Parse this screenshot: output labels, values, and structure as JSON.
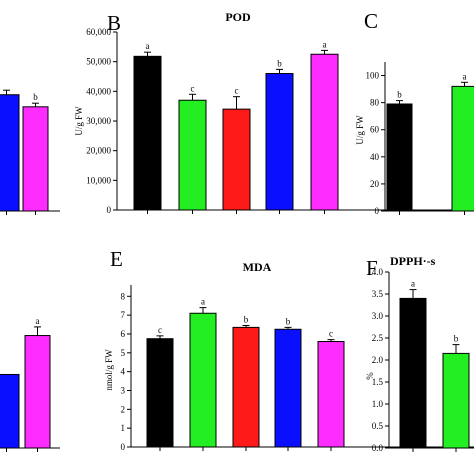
{
  "colors": {
    "black": "#000000",
    "green": "#22ee22",
    "red": "#ff1a1a",
    "blue": "#0a10ff",
    "magenta": "#ff2cff"
  },
  "chart_data": [
    {
      "id": "A-top",
      "type": "bar",
      "panel": "",
      "title": "",
      "ylabel": "",
      "ticks": [],
      "bars": [
        {
          "color": "blue",
          "value": 38.5,
          "err": 1.5,
          "sig": ""
        },
        {
          "color": "magenta",
          "value": 34.5,
          "err": 1.2,
          "sig": "b"
        }
      ]
    },
    {
      "id": "B",
      "type": "bar",
      "panel": "B",
      "title": "POD",
      "ylabel": "U/g FW",
      "ylim": [
        0,
        60000
      ],
      "ticks": [
        "0",
        "10,000",
        "20,000",
        "30,000",
        "40,000",
        "50,000",
        "60,000"
      ],
      "bars": [
        {
          "color": "black",
          "value": 51800,
          "err": 1400,
          "sig": "a"
        },
        {
          "color": "green",
          "value": 37000,
          "err": 2000,
          "sig": "c"
        },
        {
          "color": "red",
          "value": 34000,
          "err": 4200,
          "sig": "c"
        },
        {
          "color": "blue",
          "value": 46000,
          "err": 1400,
          "sig": "b"
        },
        {
          "color": "magenta",
          "value": 52500,
          "err": 1300,
          "sig": "a"
        }
      ]
    },
    {
      "id": "C",
      "type": "bar",
      "panel": "C",
      "title": "",
      "ylabel": "U/g FW",
      "ylim": [
        0,
        110
      ],
      "ticks": [
        "0",
        "20",
        "40",
        "60",
        "80",
        "100"
      ],
      "bars": [
        {
          "color": "black",
          "value": 79,
          "err": 2.5,
          "sig": "b"
        },
        {
          "color": "green",
          "value": 92,
          "err": 3,
          "sig": "a"
        }
      ]
    },
    {
      "id": "A-bottom",
      "type": "bar",
      "panel": "",
      "title": "",
      "ylabel": "",
      "ticks": [],
      "bars": [
        {
          "color": "blue",
          "value": 3.4,
          "err": 0,
          "sig": ""
        },
        {
          "color": "magenta",
          "value": 5.2,
          "err": 0.4,
          "sig": "a"
        }
      ]
    },
    {
      "id": "E",
      "type": "bar",
      "panel": "E",
      "title": "MDA",
      "ylabel": "nmol/g FW",
      "ylim": [
        0,
        8.6
      ],
      "ticks": [
        "0",
        "1",
        "2",
        "3",
        "4",
        "5",
        "6",
        "7",
        "8"
      ],
      "bars": [
        {
          "color": "black",
          "value": 5.75,
          "err": 0.15,
          "sig": "c"
        },
        {
          "color": "green",
          "value": 7.1,
          "err": 0.3,
          "sig": "a"
        },
        {
          "color": "red",
          "value": 6.35,
          "err": 0.1,
          "sig": "b"
        },
        {
          "color": "blue",
          "value": 6.25,
          "err": 0.1,
          "sig": "b"
        },
        {
          "color": "magenta",
          "value": 5.6,
          "err": 0.1,
          "sig": "c"
        }
      ]
    },
    {
      "id": "F",
      "type": "bar",
      "panel": "F",
      "title": "DPPH·-s",
      "ylabel": "%",
      "ylim": [
        0,
        4.0
      ],
      "ticks": [
        "0.0",
        "0.5",
        "1.0",
        "1.5",
        "2.0",
        "2.5",
        "3.0",
        "3.5",
        "4.0"
      ],
      "bars": [
        {
          "color": "black",
          "value": 3.4,
          "err": 0.2,
          "sig": "a"
        },
        {
          "color": "green",
          "value": 2.15,
          "err": 0.2,
          "sig": "b"
        }
      ]
    }
  ]
}
